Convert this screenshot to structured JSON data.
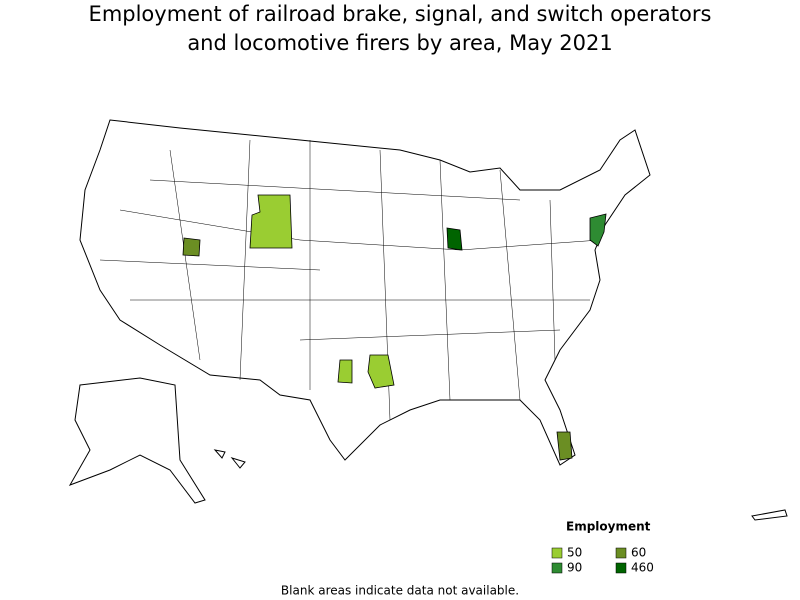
{
  "title": [
    "Employment of railroad brake, signal, and switch operators",
    "and locomotive firers by area, May 2021"
  ],
  "legend": {
    "title": "Employment",
    "items": [
      {
        "label": 50,
        "color": "#9acd32"
      },
      {
        "label": 60,
        "color": "#6b8e23"
      },
      {
        "label": 90,
        "color": "#2e8b32"
      },
      {
        "label": 460,
        "color": "#006400"
      }
    ]
  },
  "footnote": "Blank areas indicate data not available."
}
